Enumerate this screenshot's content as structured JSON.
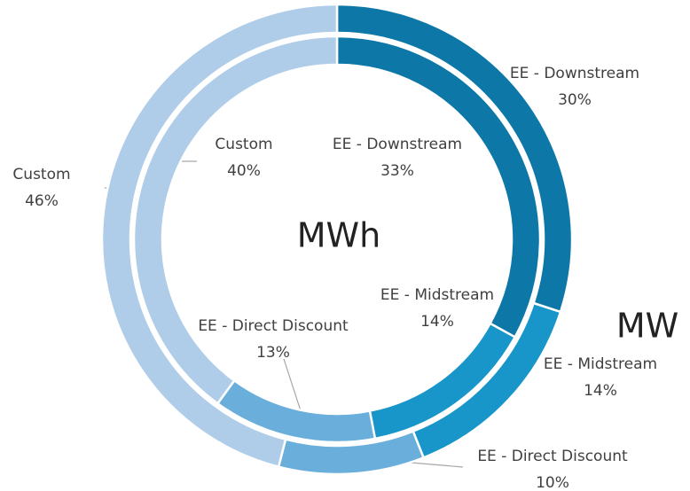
{
  "chart_data": {
    "type": "doughnut",
    "categories": [
      "EE - Downstream",
      "EE - Midstream",
      "EE - Direct Discount",
      "Custom"
    ],
    "colors": [
      "#0d77a7",
      "#1896c9",
      "#6aaedb",
      "#afcde8"
    ],
    "series": [
      {
        "name": "MW",
        "values": [
          30,
          14,
          10,
          46
        ],
        "value_labels": [
          "30%",
          "14%",
          "10%",
          "46%"
        ]
      },
      {
        "name": "MWh",
        "values": [
          33,
          14,
          13,
          40
        ],
        "value_labels": [
          "33%",
          "14%",
          "13%",
          "40%"
        ]
      }
    ]
  }
}
